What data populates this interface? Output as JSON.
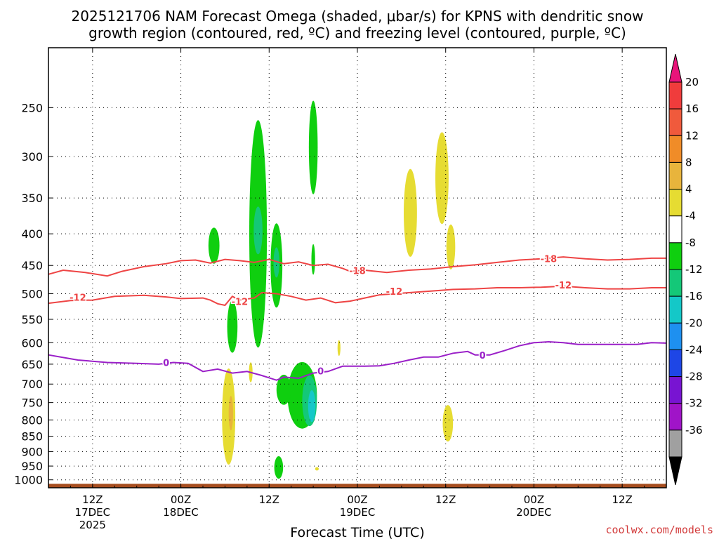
{
  "chart_data": {
    "type": "contour",
    "title": "2025121706 NAM Forecast Omega (shaded, μbar/s) for KPNS with dendritic snow growth region (contoured, red, ºC) and freezing level (contoured, purple, ºC)",
    "title_lines": [
      "2025121706 NAM Forecast Omega (shaded, μbar/s) for KPNS with dendritic snow",
      "growth region (contoured, red, ºC) and freezing level (contoured, purple, ºC)"
    ],
    "xlabel": "Forecast Time (UTC)",
    "credit": "coolwx.com/models",
    "xlim": [
      0,
      84
    ],
    "ylim_hpa": [
      1030,
      200
    ],
    "y_ticks": [
      250,
      300,
      350,
      400,
      450,
      500,
      550,
      600,
      650,
      700,
      750,
      800,
      850,
      900,
      950,
      1000
    ],
    "x_ticks": [
      {
        "t": 6,
        "lines": [
          "12Z",
          "17DEC",
          "2025"
        ]
      },
      {
        "t": 18,
        "lines": [
          "00Z",
          "18DEC"
        ]
      },
      {
        "t": 30,
        "lines": [
          "12Z"
        ]
      },
      {
        "t": 42,
        "lines": [
          "00Z",
          "19DEC"
        ]
      },
      {
        "t": 54,
        "lines": [
          "12Z"
        ]
      },
      {
        "t": 66,
        "lines": [
          "00Z",
          "20DEC"
        ]
      },
      {
        "t": 78,
        "lines": [
          "12Z"
        ]
      }
    ],
    "colorbar": {
      "labels": [
        "20",
        "16",
        "12",
        "8",
        "4",
        "-4",
        "-8",
        "-12",
        "-16",
        "-20",
        "-24",
        "-28",
        "-32",
        "-36"
      ],
      "top_triangle": "#e8147a",
      "bottom_triangle": "#000000",
      "colors": [
        "#f03c3c",
        "#f05a3c",
        "#f08c28",
        "#e8b43c",
        "#e6dc32",
        "#ffffff",
        "#0fcf0f",
        "#14c878",
        "#14c8c8",
        "#1e90f0",
        "#1e46e6",
        "#7814d2",
        "#a014c8",
        "#a0a0a0"
      ]
    },
    "contours": [
      {
        "name": "-18 red",
        "label": "-18",
        "color": "#ee4444",
        "label_at": [
          [
            42,
            460
          ],
          [
            68,
            440
          ]
        ],
        "points": [
          [
            0,
            465
          ],
          [
            2,
            458
          ],
          [
            5,
            462
          ],
          [
            8,
            468
          ],
          [
            10,
            460
          ],
          [
            13,
            452
          ],
          [
            16,
            447
          ],
          [
            18,
            442
          ],
          [
            20,
            441
          ],
          [
            22,
            446
          ],
          [
            24,
            440
          ],
          [
            26,
            442
          ],
          [
            28,
            445
          ],
          [
            30,
            440
          ],
          [
            32,
            447
          ],
          [
            34,
            444
          ],
          [
            36,
            450
          ],
          [
            38,
            448
          ],
          [
            40,
            455
          ],
          [
            41,
            460
          ],
          [
            43,
            458
          ],
          [
            46,
            462
          ],
          [
            49,
            458
          ],
          [
            52,
            456
          ],
          [
            55,
            452
          ],
          [
            58,
            449
          ],
          [
            61,
            445
          ],
          [
            64,
            441
          ],
          [
            67,
            439
          ],
          [
            70,
            436
          ],
          [
            73,
            439
          ],
          [
            76,
            441
          ],
          [
            79,
            440
          ],
          [
            82,
            438
          ],
          [
            84,
            438
          ]
        ]
      },
      {
        "name": "-12 red",
        "label": "-12",
        "color": "#ee4444",
        "label_at": [
          [
            4,
            508
          ],
          [
            26,
            516
          ],
          [
            47,
            497
          ],
          [
            70,
            485
          ]
        ],
        "points": [
          [
            0,
            518
          ],
          [
            3,
            513
          ],
          [
            6,
            512
          ],
          [
            9,
            505
          ],
          [
            13,
            503
          ],
          [
            16,
            506
          ],
          [
            18,
            509
          ],
          [
            21,
            508
          ],
          [
            22,
            512
          ],
          [
            23,
            519
          ],
          [
            24,
            522
          ],
          [
            25,
            505
          ],
          [
            26,
            512
          ],
          [
            28,
            508
          ],
          [
            29,
            498
          ],
          [
            31,
            500
          ],
          [
            33,
            505
          ],
          [
            35,
            512
          ],
          [
            37,
            508
          ],
          [
            39,
            517
          ],
          [
            41,
            514
          ],
          [
            43,
            508
          ],
          [
            45,
            502
          ],
          [
            49,
            498
          ],
          [
            52,
            495
          ],
          [
            55,
            492
          ],
          [
            58,
            491
          ],
          [
            61,
            489
          ],
          [
            64,
            489
          ],
          [
            67,
            488
          ],
          [
            70,
            486
          ],
          [
            73,
            489
          ],
          [
            76,
            491
          ],
          [
            79,
            491
          ],
          [
            82,
            489
          ],
          [
            84,
            489
          ]
        ]
      },
      {
        "name": "0 purple",
        "label": "0",
        "color": "#9a1fc8",
        "label_at": [
          [
            16,
            648
          ],
          [
            37,
            668
          ],
          [
            59,
            630
          ]
        ],
        "points": [
          [
            0,
            628
          ],
          [
            4,
            640
          ],
          [
            8,
            646
          ],
          [
            12,
            648
          ],
          [
            15,
            650
          ],
          [
            17,
            646
          ],
          [
            19,
            648
          ],
          [
            21,
            668
          ],
          [
            23,
            662
          ],
          [
            25,
            672
          ],
          [
            27,
            668
          ],
          [
            29,
            678
          ],
          [
            31,
            690
          ],
          [
            32,
            682
          ],
          [
            34,
            685
          ],
          [
            36,
            672
          ],
          [
            38,
            668
          ],
          [
            40,
            655
          ],
          [
            43,
            655
          ],
          [
            45,
            654
          ],
          [
            47,
            648
          ],
          [
            49,
            640
          ],
          [
            51,
            633
          ],
          [
            53,
            633
          ],
          [
            55,
            624
          ],
          [
            57,
            620
          ],
          [
            58,
            628
          ],
          [
            60,
            628
          ],
          [
            62,
            618
          ],
          [
            64,
            607
          ],
          [
            66,
            600
          ],
          [
            68,
            598
          ],
          [
            70,
            600
          ],
          [
            72,
            604
          ],
          [
            74,
            604
          ],
          [
            77,
            604
          ],
          [
            80,
            604
          ],
          [
            82,
            600
          ],
          [
            84,
            601
          ]
        ]
      }
    ],
    "omega_blobs": [
      {
        "name": "green-400-left",
        "color": "#0fcf0f",
        "t": 22.5,
        "p": 418,
        "rt": 0.75,
        "rp": 28
      },
      {
        "name": "green-main-upper",
        "color": "#0fcf0f",
        "t": 28.5,
        "p": 400,
        "rt": 1.2,
        "rp": 160
      },
      {
        "name": "teal-main-upper",
        "color": "#14c878",
        "t": 28.5,
        "p": 395,
        "rt": 0.6,
        "rp": 35
      },
      {
        "name": "green-sub-upper",
        "color": "#0fcf0f",
        "t": 31,
        "p": 450,
        "rt": 0.8,
        "rp": 70
      },
      {
        "name": "teal-sub-upper",
        "color": "#14c878",
        "t": 31,
        "p": 445,
        "rt": 0.4,
        "rp": 25
      },
      {
        "name": "green-left-mid",
        "color": "#0fcf0f",
        "t": 25,
        "p": 565,
        "rt": 0.7,
        "rp": 55
      },
      {
        "name": "green-250",
        "color": "#0fcf0f",
        "t": 36,
        "p": 290,
        "rt": 0.6,
        "rp": 50
      },
      {
        "name": "green-440-thin",
        "color": "#0fcf0f",
        "t": 36,
        "p": 440,
        "rt": 0.25,
        "rp": 25
      },
      {
        "name": "green-dev-cluster",
        "color": "#0fcf0f",
        "t": 34.5,
        "p": 730,
        "rt": 2.0,
        "rp": 90
      },
      {
        "name": "green-dev-left",
        "color": "#0fcf0f",
        "t": 32,
        "p": 715,
        "rt": 1.0,
        "rp": 40
      },
      {
        "name": "teal-dev",
        "color": "#14c878",
        "t": 35.5,
        "p": 745,
        "rt": 1.0,
        "rp": 70
      },
      {
        "name": "cyan-dev",
        "color": "#14c8c8",
        "t": 35.8,
        "p": 760,
        "rt": 0.5,
        "rp": 45
      },
      {
        "name": "green-950",
        "color": "#0fcf0f",
        "t": 31.3,
        "p": 955,
        "rt": 0.6,
        "rp": 40
      },
      {
        "name": "yellow-low-left",
        "color": "#e6dc32",
        "t": 24.5,
        "p": 790,
        "rt": 0.9,
        "rp": 140
      },
      {
        "name": "orange-low-left",
        "color": "#e8b43c",
        "t": 24.8,
        "p": 780,
        "rt": 0.3,
        "rp": 50
      },
      {
        "name": "yellow-660",
        "color": "#e6dc32",
        "t": 27.5,
        "p": 670,
        "rt": 0.25,
        "rp": 25
      },
      {
        "name": "yellow-620",
        "color": "#e6dc32",
        "t": 39.5,
        "p": 612,
        "rt": 0.2,
        "rp": 18
      },
      {
        "name": "yellow-350",
        "color": "#e6dc32",
        "t": 49.2,
        "p": 370,
        "rt": 0.9,
        "rp": 60
      },
      {
        "name": "yellow-310",
        "color": "#e6dc32",
        "t": 53.5,
        "p": 325,
        "rt": 0.9,
        "rp": 55
      },
      {
        "name": "yellow-420",
        "color": "#e6dc32",
        "t": 54.7,
        "p": 420,
        "rt": 0.6,
        "rp": 35
      },
      {
        "name": "yellow-800",
        "color": "#e6dc32",
        "t": 54.3,
        "p": 810,
        "rt": 0.7,
        "rp": 55
      },
      {
        "name": "yellow-960",
        "color": "#e6dc32",
        "t": 36.5,
        "p": 960,
        "rt": 0.25,
        "rp": 6
      }
    ],
    "terrain": {
      "color": "#a64d1e",
      "p_top": 1015
    }
  }
}
